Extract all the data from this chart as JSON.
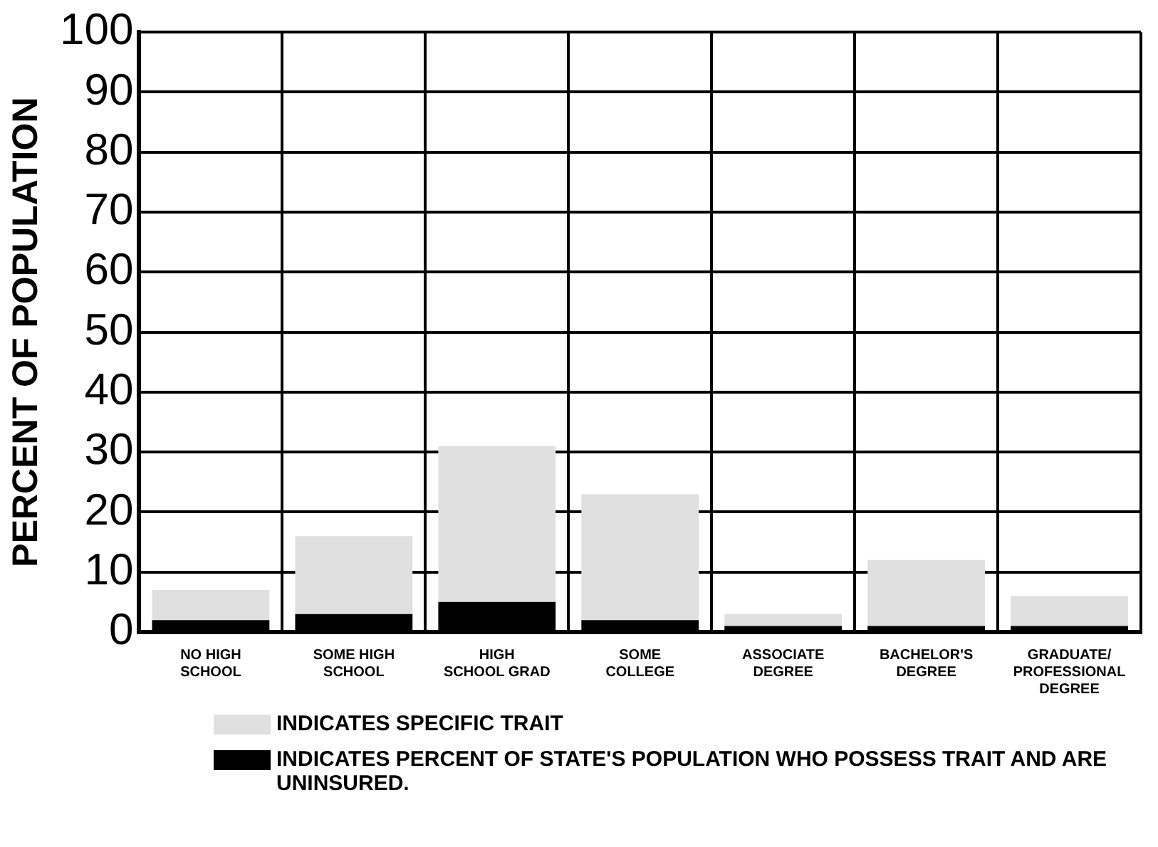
{
  "chart_data": {
    "type": "bar",
    "ylabel": "PERCENT OF POPULATION",
    "categories": [
      "NO HIGH\nSCHOOL",
      "SOME HIGH\nSCHOOL",
      "HIGH\nSCHOOL GRAD",
      "SOME\nCOLLEGE",
      "ASSOCIATE\nDEGREE",
      "BACHELOR'S\nDEGREE",
      "GRADUATE/\nPROFESSIONAL\nDEGREE"
    ],
    "stacked": true,
    "series": [
      {
        "name": "INDICATES PERCENT OF STATE'S POPULATION WHO POSSESS TRAIT AND ARE UNINSURED.",
        "color": "#000000",
        "values": [
          2,
          3,
          5,
          2,
          1,
          1,
          1
        ]
      },
      {
        "name": "INDICATES SPECIFIC TRAIT",
        "color": "#e0e0e0",
        "values": [
          5,
          13,
          26,
          21,
          2,
          11,
          5
        ]
      }
    ],
    "ylim": [
      0,
      100
    ],
    "yticks": [
      0,
      10,
      20,
      30,
      40,
      50,
      60,
      70,
      80,
      90,
      100
    ],
    "grid": true,
    "legend": "bottom"
  }
}
